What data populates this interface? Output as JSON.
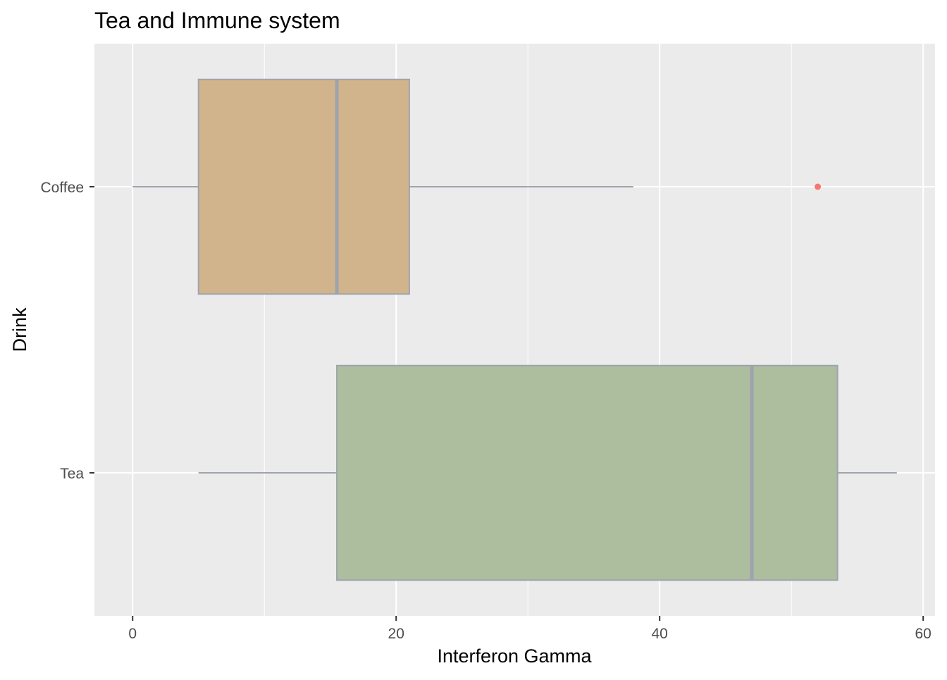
{
  "chart_data": {
    "type": "boxplot",
    "orientation": "horizontal",
    "title": "Tea and Immune system",
    "xlabel": "Interferon Gamma",
    "ylabel": "Drink",
    "xlim": [
      -2.9,
      60.9
    ],
    "x_ticks": [
      0,
      20,
      40,
      60
    ],
    "x_tick_labels": [
      "0",
      "20",
      "40",
      "60"
    ],
    "categories": [
      "Coffee",
      "Tea"
    ],
    "series": [
      {
        "category": "Coffee",
        "whisker_low": 0,
        "q1": 5,
        "median": 15.5,
        "q3": 21,
        "whisker_high": 38,
        "outliers": [
          52
        ],
        "fill": "#D2B48C"
      },
      {
        "category": "Tea",
        "whisker_low": 5,
        "q1": 15.5,
        "median": 47,
        "q3": 53.5,
        "whisker_high": 58,
        "outliers": [],
        "fill": "#ADBE9E"
      }
    ],
    "grid": true,
    "legend": "none",
    "colors": {
      "panel_background": "#EBEBEB",
      "grid": "#FFFFFF",
      "box_outline": "#9EA3AD",
      "outlier": "#F8766D"
    }
  }
}
